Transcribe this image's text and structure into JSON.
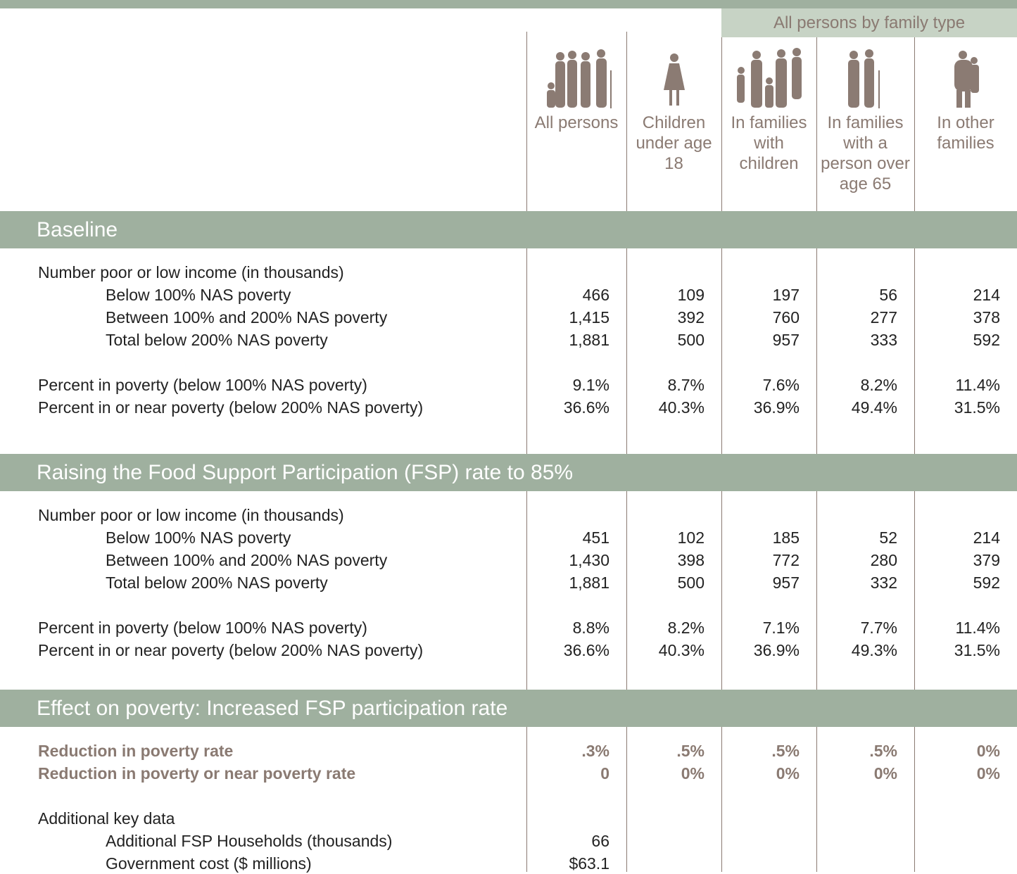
{
  "header": {
    "group_label": "All persons by family type",
    "columns": [
      "All persons",
      "Children under age 18",
      "In families with children",
      "In families with a person over age 65",
      "In other families"
    ]
  },
  "sections": [
    {
      "title": "Baseline",
      "blocks": [
        {
          "heading": "Number poor or low income (in thousands)",
          "rows": [
            {
              "label": "Below 100% NAS poverty",
              "values": [
                "466",
                "109",
                "197",
                "56",
                "214"
              ]
            },
            {
              "label": "Between 100% and 200% NAS poverty",
              "values": [
                "1,415",
                "392",
                "760",
                "277",
                "378"
              ]
            },
            {
              "label": "Total below 200% NAS poverty",
              "values": [
                "1,881",
                "500",
                "957",
                "333",
                "592"
              ]
            }
          ]
        },
        {
          "rows": [
            {
              "label": "Percent in poverty (below 100% NAS poverty)",
              "values": [
                "9.1%",
                "8.7%",
                "7.6%",
                "8.2%",
                "11.4%"
              ]
            },
            {
              "label": "Percent in or near poverty (below 200% NAS poverty)",
              "values": [
                "36.6%",
                "40.3%",
                "36.9%",
                "49.4%",
                "31.5%"
              ]
            }
          ]
        }
      ]
    },
    {
      "title": "Raising the Food Support Participation (FSP) rate to 85%",
      "blocks": [
        {
          "heading": "Number poor or low income (in thousands)",
          "rows": [
            {
              "label": "Below 100% NAS poverty",
              "values": [
                "451",
                "102",
                "185",
                "52",
                "214"
              ]
            },
            {
              "label": "Between 100% and 200% NAS poverty",
              "values": [
                "1,430",
                "398",
                "772",
                "280",
                "379"
              ]
            },
            {
              "label": "Total below 200% NAS poverty",
              "values": [
                "1,881",
                "500",
                "957",
                "332",
                "592"
              ]
            }
          ]
        },
        {
          "rows": [
            {
              "label": "Percent in poverty (below 100% NAS poverty)",
              "values": [
                "8.8%",
                "8.2%",
                "7.1%",
                "7.7%",
                "11.4%"
              ]
            },
            {
              "label": "Percent in or near poverty (below 200% NAS poverty)",
              "values": [
                "36.6%",
                "40.3%",
                "36.9%",
                "49.3%",
                "31.5%"
              ]
            }
          ]
        }
      ]
    },
    {
      "title": "Effect on poverty: Increased FSP participation rate",
      "blocks": [
        {
          "rows": [
            {
              "label": "Reduction in poverty rate",
              "values": [
                ".3%",
                ".5%",
                ".5%",
                ".5%",
                "0%"
              ],
              "highlight": true
            },
            {
              "label": "Reduction in poverty or near poverty rate",
              "values": [
                "0",
                "0%",
                "0%",
                "0%",
                "0%"
              ],
              "highlight": true
            }
          ]
        },
        {
          "heading": "Additional key data",
          "rows": [
            {
              "label": "Additional FSP Households (thousands)",
              "values": [
                "66"
              ]
            },
            {
              "label": "Government cost ($ millions)",
              "values": [
                "$63.1"
              ]
            }
          ]
        }
      ]
    }
  ]
}
